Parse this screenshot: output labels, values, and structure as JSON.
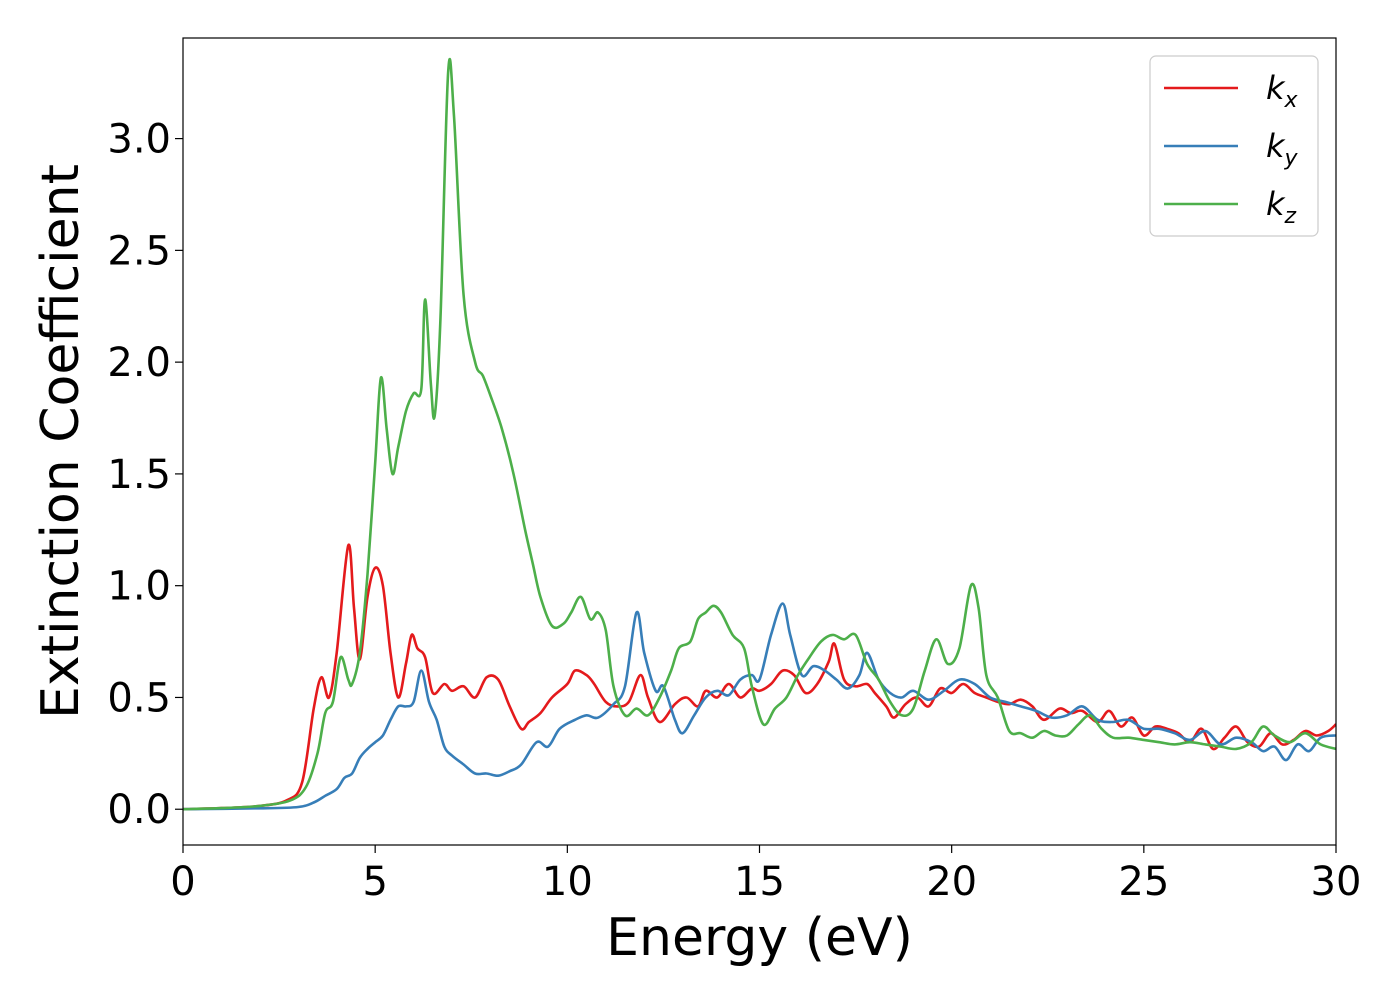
{
  "chart_data": {
    "type": "line",
    "title": "",
    "xlabel": "Energy (eV)",
    "ylabel": "Extinction Coefficient",
    "xlim": [
      0,
      30
    ],
    "ylim": [
      -0.16,
      3.45
    ],
    "xticks": [
      0,
      5,
      10,
      15,
      20,
      25,
      30
    ],
    "xtick_labels": [
      "0",
      "5",
      "10",
      "15",
      "20",
      "25",
      "30"
    ],
    "yticks": [
      0.0,
      0.5,
      1.0,
      1.5,
      2.0,
      2.5,
      3.0
    ],
    "ytick_labels": [
      "0.0",
      "0.5",
      "1.0",
      "1.5",
      "2.0",
      "2.5",
      "3.0"
    ],
    "grid": false,
    "legend_position": "top-right",
    "series": [
      {
        "name": "k_x",
        "label_base": "k",
        "label_sub": "x",
        "color": "#e41a1c",
        "points": [
          [
            0,
            0
          ],
          [
            1,
            0.005
          ],
          [
            2,
            0.015
          ],
          [
            2.7,
            0.04
          ],
          [
            3.1,
            0.12
          ],
          [
            3.4,
            0.45
          ],
          [
            3.6,
            0.59
          ],
          [
            3.8,
            0.5
          ],
          [
            4.0,
            0.7
          ],
          [
            4.3,
            1.18
          ],
          [
            4.45,
            0.9
          ],
          [
            4.6,
            0.67
          ],
          [
            4.8,
            0.95
          ],
          [
            5.0,
            1.08
          ],
          [
            5.2,
            1.0
          ],
          [
            5.4,
            0.7
          ],
          [
            5.6,
            0.5
          ],
          [
            5.8,
            0.65
          ],
          [
            5.95,
            0.78
          ],
          [
            6.1,
            0.72
          ],
          [
            6.3,
            0.68
          ],
          [
            6.5,
            0.52
          ],
          [
            6.8,
            0.56
          ],
          [
            7.0,
            0.53
          ],
          [
            7.3,
            0.55
          ],
          [
            7.6,
            0.5
          ],
          [
            7.9,
            0.59
          ],
          [
            8.2,
            0.58
          ],
          [
            8.5,
            0.46
          ],
          [
            8.8,
            0.36
          ],
          [
            9.0,
            0.39
          ],
          [
            9.3,
            0.43
          ],
          [
            9.6,
            0.5
          ],
          [
            10.0,
            0.56
          ],
          [
            10.2,
            0.62
          ],
          [
            10.5,
            0.6
          ],
          [
            10.7,
            0.56
          ],
          [
            11.0,
            0.48
          ],
          [
            11.3,
            0.46
          ],
          [
            11.6,
            0.48
          ],
          [
            11.9,
            0.6
          ],
          [
            12.1,
            0.5
          ],
          [
            12.4,
            0.39
          ],
          [
            12.8,
            0.47
          ],
          [
            13.1,
            0.5
          ],
          [
            13.4,
            0.46
          ],
          [
            13.6,
            0.53
          ],
          [
            13.9,
            0.5
          ],
          [
            14.2,
            0.56
          ],
          [
            14.5,
            0.5
          ],
          [
            14.8,
            0.54
          ],
          [
            15.0,
            0.53
          ],
          [
            15.3,
            0.56
          ],
          [
            15.6,
            0.62
          ],
          [
            15.9,
            0.6
          ],
          [
            16.2,
            0.52
          ],
          [
            16.5,
            0.56
          ],
          [
            16.8,
            0.66
          ],
          [
            16.95,
            0.74
          ],
          [
            17.2,
            0.58
          ],
          [
            17.5,
            0.55
          ],
          [
            17.8,
            0.56
          ],
          [
            18.0,
            0.52
          ],
          [
            18.3,
            0.46
          ],
          [
            18.5,
            0.41
          ],
          [
            18.8,
            0.47
          ],
          [
            19.1,
            0.5
          ],
          [
            19.4,
            0.46
          ],
          [
            19.7,
            0.54
          ],
          [
            20.0,
            0.52
          ],
          [
            20.3,
            0.56
          ],
          [
            20.6,
            0.52
          ],
          [
            20.9,
            0.5
          ],
          [
            21.2,
            0.48
          ],
          [
            21.5,
            0.47
          ],
          [
            21.8,
            0.49
          ],
          [
            22.1,
            0.46
          ],
          [
            22.4,
            0.4
          ],
          [
            22.8,
            0.45
          ],
          [
            23.1,
            0.43
          ],
          [
            23.4,
            0.44
          ],
          [
            23.8,
            0.39
          ],
          [
            24.1,
            0.44
          ],
          [
            24.4,
            0.37
          ],
          [
            24.7,
            0.41
          ],
          [
            25.0,
            0.33
          ],
          [
            25.3,
            0.37
          ],
          [
            25.6,
            0.36
          ],
          [
            25.9,
            0.34
          ],
          [
            26.2,
            0.3
          ],
          [
            26.5,
            0.36
          ],
          [
            26.8,
            0.27
          ],
          [
            27.1,
            0.32
          ],
          [
            27.4,
            0.37
          ],
          [
            27.7,
            0.3
          ],
          [
            28.0,
            0.28
          ],
          [
            28.3,
            0.34
          ],
          [
            28.6,
            0.29
          ],
          [
            28.9,
            0.31
          ],
          [
            29.2,
            0.35
          ],
          [
            29.5,
            0.33
          ],
          [
            29.8,
            0.35
          ],
          [
            30.0,
            0.38
          ]
        ]
      },
      {
        "name": "k_y",
        "label_base": "k",
        "label_sub": "y",
        "color": "#377eb8",
        "points": [
          [
            0,
            0
          ],
          [
            2,
            0.004
          ],
          [
            3.0,
            0.01
          ],
          [
            3.4,
            0.03
          ],
          [
            3.7,
            0.06
          ],
          [
            4.0,
            0.09
          ],
          [
            4.2,
            0.14
          ],
          [
            4.4,
            0.16
          ],
          [
            4.6,
            0.23
          ],
          [
            4.8,
            0.27
          ],
          [
            5.0,
            0.3
          ],
          [
            5.2,
            0.33
          ],
          [
            5.4,
            0.4
          ],
          [
            5.6,
            0.46
          ],
          [
            5.8,
            0.46
          ],
          [
            6.0,
            0.48
          ],
          [
            6.2,
            0.62
          ],
          [
            6.4,
            0.48
          ],
          [
            6.6,
            0.4
          ],
          [
            6.8,
            0.28
          ],
          [
            7.0,
            0.24
          ],
          [
            7.3,
            0.2
          ],
          [
            7.6,
            0.16
          ],
          [
            7.9,
            0.16
          ],
          [
            8.2,
            0.15
          ],
          [
            8.5,
            0.17
          ],
          [
            8.8,
            0.2
          ],
          [
            9.2,
            0.3
          ],
          [
            9.5,
            0.28
          ],
          [
            9.8,
            0.36
          ],
          [
            10.2,
            0.4
          ],
          [
            10.5,
            0.42
          ],
          [
            10.8,
            0.41
          ],
          [
            11.2,
            0.47
          ],
          [
            11.5,
            0.55
          ],
          [
            11.8,
            0.88
          ],
          [
            12.0,
            0.7
          ],
          [
            12.3,
            0.53
          ],
          [
            12.5,
            0.55
          ],
          [
            12.8,
            0.4
          ],
          [
            13.0,
            0.34
          ],
          [
            13.3,
            0.42
          ],
          [
            13.6,
            0.5
          ],
          [
            13.9,
            0.53
          ],
          [
            14.2,
            0.51
          ],
          [
            14.5,
            0.58
          ],
          [
            14.8,
            0.6
          ],
          [
            15.0,
            0.58
          ],
          [
            15.3,
            0.78
          ],
          [
            15.6,
            0.92
          ],
          [
            15.8,
            0.78
          ],
          [
            16.1,
            0.6
          ],
          [
            16.4,
            0.64
          ],
          [
            16.7,
            0.62
          ],
          [
            17.0,
            0.58
          ],
          [
            17.3,
            0.54
          ],
          [
            17.6,
            0.6
          ],
          [
            17.8,
            0.7
          ],
          [
            18.1,
            0.58
          ],
          [
            18.4,
            0.52
          ],
          [
            18.7,
            0.5
          ],
          [
            19.0,
            0.53
          ],
          [
            19.4,
            0.49
          ],
          [
            19.8,
            0.53
          ],
          [
            20.2,
            0.58
          ],
          [
            20.6,
            0.56
          ],
          [
            21.0,
            0.5
          ],
          [
            21.4,
            0.48
          ],
          [
            21.8,
            0.46
          ],
          [
            22.2,
            0.44
          ],
          [
            22.6,
            0.41
          ],
          [
            23.0,
            0.42
          ],
          [
            23.4,
            0.46
          ],
          [
            23.8,
            0.4
          ],
          [
            24.2,
            0.39
          ],
          [
            24.6,
            0.4
          ],
          [
            25.0,
            0.36
          ],
          [
            25.4,
            0.36
          ],
          [
            25.8,
            0.34
          ],
          [
            26.2,
            0.31
          ],
          [
            26.6,
            0.35
          ],
          [
            27.0,
            0.29
          ],
          [
            27.4,
            0.32
          ],
          [
            27.8,
            0.3
          ],
          [
            28.1,
            0.26
          ],
          [
            28.4,
            0.28
          ],
          [
            28.7,
            0.22
          ],
          [
            29.0,
            0.29
          ],
          [
            29.3,
            0.26
          ],
          [
            29.6,
            0.32
          ],
          [
            30.0,
            0.33
          ]
        ]
      },
      {
        "name": "k_z",
        "label_base": "k",
        "label_sub": "z",
        "color": "#4daf4a",
        "points": [
          [
            0,
            0
          ],
          [
            1,
            0.005
          ],
          [
            2,
            0.015
          ],
          [
            2.8,
            0.04
          ],
          [
            3.2,
            0.1
          ],
          [
            3.5,
            0.25
          ],
          [
            3.7,
            0.43
          ],
          [
            3.9,
            0.48
          ],
          [
            4.1,
            0.68
          ],
          [
            4.3,
            0.58
          ],
          [
            4.4,
            0.56
          ],
          [
            4.6,
            0.7
          ],
          [
            4.8,
            1.05
          ],
          [
            5.0,
            1.55
          ],
          [
            5.15,
            1.93
          ],
          [
            5.3,
            1.7
          ],
          [
            5.45,
            1.5
          ],
          [
            5.6,
            1.62
          ],
          [
            5.8,
            1.78
          ],
          [
            6.0,
            1.86
          ],
          [
            6.2,
            1.88
          ],
          [
            6.3,
            2.28
          ],
          [
            6.45,
            1.9
          ],
          [
            6.55,
            1.76
          ],
          [
            6.7,
            2.2
          ],
          [
            6.9,
            3.3
          ],
          [
            7.05,
            3.1
          ],
          [
            7.3,
            2.3
          ],
          [
            7.6,
            2.0
          ],
          [
            7.8,
            1.94
          ],
          [
            8.0,
            1.85
          ],
          [
            8.3,
            1.7
          ],
          [
            8.6,
            1.5
          ],
          [
            8.9,
            1.25
          ],
          [
            9.1,
            1.1
          ],
          [
            9.3,
            0.95
          ],
          [
            9.6,
            0.82
          ],
          [
            9.9,
            0.83
          ],
          [
            10.1,
            0.88
          ],
          [
            10.35,
            0.95
          ],
          [
            10.6,
            0.85
          ],
          [
            10.8,
            0.88
          ],
          [
            11.0,
            0.8
          ],
          [
            11.2,
            0.55
          ],
          [
            11.5,
            0.42
          ],
          [
            11.8,
            0.45
          ],
          [
            12.1,
            0.42
          ],
          [
            12.4,
            0.5
          ],
          [
            12.7,
            0.62
          ],
          [
            12.9,
            0.72
          ],
          [
            13.2,
            0.75
          ],
          [
            13.4,
            0.85
          ],
          [
            13.6,
            0.88
          ],
          [
            13.8,
            0.91
          ],
          [
            14.0,
            0.88
          ],
          [
            14.3,
            0.78
          ],
          [
            14.6,
            0.72
          ],
          [
            14.8,
            0.55
          ],
          [
            15.1,
            0.38
          ],
          [
            15.4,
            0.45
          ],
          [
            15.7,
            0.5
          ],
          [
            16.0,
            0.6
          ],
          [
            16.3,
            0.68
          ],
          [
            16.6,
            0.75
          ],
          [
            16.9,
            0.78
          ],
          [
            17.2,
            0.76
          ],
          [
            17.5,
            0.78
          ],
          [
            17.8,
            0.65
          ],
          [
            18.1,
            0.58
          ],
          [
            18.4,
            0.48
          ],
          [
            18.7,
            0.42
          ],
          [
            19.0,
            0.45
          ],
          [
            19.3,
            0.62
          ],
          [
            19.6,
            0.76
          ],
          [
            19.9,
            0.65
          ],
          [
            20.2,
            0.72
          ],
          [
            20.5,
            1.0
          ],
          [
            20.7,
            0.9
          ],
          [
            20.9,
            0.6
          ],
          [
            21.2,
            0.5
          ],
          [
            21.5,
            0.35
          ],
          [
            21.8,
            0.34
          ],
          [
            22.1,
            0.32
          ],
          [
            22.4,
            0.35
          ],
          [
            22.7,
            0.33
          ],
          [
            23.0,
            0.33
          ],
          [
            23.3,
            0.38
          ],
          [
            23.6,
            0.42
          ],
          [
            23.9,
            0.36
          ],
          [
            24.2,
            0.32
          ],
          [
            24.6,
            0.32
          ],
          [
            25.0,
            0.31
          ],
          [
            25.4,
            0.3
          ],
          [
            25.8,
            0.29
          ],
          [
            26.2,
            0.3
          ],
          [
            26.6,
            0.29
          ],
          [
            27.0,
            0.28
          ],
          [
            27.4,
            0.27
          ],
          [
            27.8,
            0.3
          ],
          [
            28.1,
            0.37
          ],
          [
            28.4,
            0.33
          ],
          [
            28.8,
            0.3
          ],
          [
            29.2,
            0.34
          ],
          [
            29.6,
            0.29
          ],
          [
            30.0,
            0.27
          ]
        ]
      }
    ]
  }
}
